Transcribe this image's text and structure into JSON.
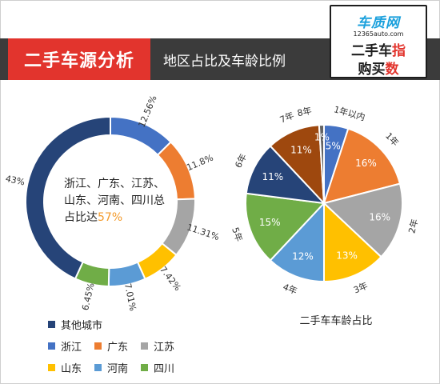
{
  "header": {
    "title": "二手车源分析",
    "subtitle": "地区占比及车龄比例"
  },
  "logo": {
    "brand": "车质网",
    "url": "12365auto.com",
    "line1": "二手车",
    "line1_highlight": "指",
    "line2": "购买",
    "line2_highlight": "数"
  },
  "center_text": {
    "prefix": "浙江、广东、江苏、山东、河南、四川总占比达",
    "percent": "57%"
  },
  "chart_data": [
    {
      "type": "pie",
      "style": "donut",
      "labels": [
        "浙江",
        "广东",
        "江苏",
        "山东",
        "河南",
        "四川",
        "其他城市"
      ],
      "values": [
        12.56,
        11.8,
        11.31,
        7.42,
        7.01,
        6.45,
        43
      ],
      "value_labels": [
        "12.56%",
        "11.8%",
        "11.31%",
        "7.42%",
        "7.01%",
        "6.45%",
        "43%"
      ],
      "colors": [
        "#4472c4",
        "#ed7d31",
        "#a5a5a5",
        "#ffc000",
        "#5b9bd5",
        "#70ad47",
        "#264478"
      ],
      "start": "top, clockwise",
      "legend_placement": "bottom-left"
    },
    {
      "type": "pie",
      "title": "二手车车龄占比",
      "labels": [
        "1年以内",
        "1年",
        "2年",
        "3年",
        "4年",
        "5年",
        "6年",
        "7年",
        "8年"
      ],
      "values": [
        5,
        16,
        16,
        13,
        12,
        15,
        11,
        11,
        1
      ],
      "value_labels": [
        "5%",
        "16%",
        "16%",
        "13%",
        "12%",
        "15%",
        "11%",
        "11%",
        "1%"
      ],
      "colors": [
        "#4472c4",
        "#ed7d31",
        "#a5a5a5",
        "#ffc000",
        "#5b9bd5",
        "#70ad47",
        "#264478",
        "#9e480e",
        "#636363"
      ],
      "start": "top, clockwise"
    }
  ],
  "legend": [
    {
      "label": "其他城市",
      "color": "#264478"
    },
    {
      "label": "浙江",
      "color": "#4472c4"
    },
    {
      "label": "广东",
      "color": "#ed7d31"
    },
    {
      "label": "江苏",
      "color": "#a5a5a5"
    },
    {
      "label": "山东",
      "color": "#ffc000"
    },
    {
      "label": "河南",
      "color": "#5b9bd5"
    },
    {
      "label": "四川",
      "color": "#70ad47"
    }
  ]
}
